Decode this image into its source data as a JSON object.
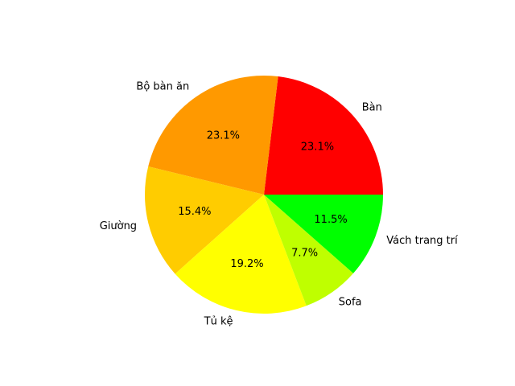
{
  "chart_data": {
    "type": "pie",
    "title": "",
    "start_angle_deg": 0,
    "direction": "counterclockwise",
    "categories": [
      "Bàn",
      "Bộ bàn ăn",
      "Giường",
      "Tủ kệ",
      "Sofa",
      "Vách trang trí"
    ],
    "values": [
      23.1,
      23.1,
      15.4,
      19.2,
      7.7,
      11.5
    ],
    "value_labels": [
      "23.1%",
      "23.1%",
      "15.4%",
      "19.2%",
      "7.7%",
      "11.5%"
    ],
    "colors": [
      "#ff0000",
      "#ff9900",
      "#ffcc00",
      "#ffff00",
      "#bfff00",
      "#00ff00"
    ],
    "legend": "none"
  }
}
